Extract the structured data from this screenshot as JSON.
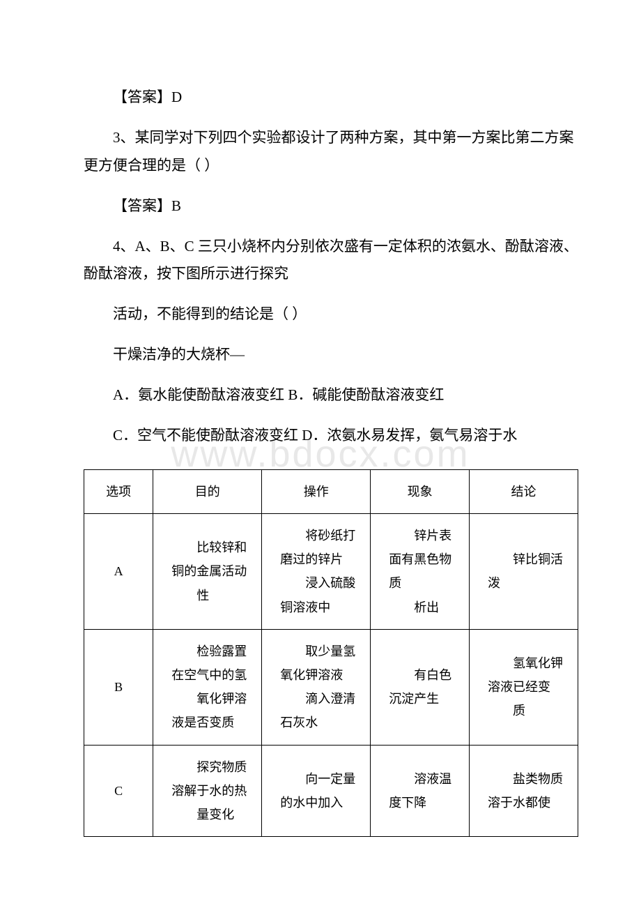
{
  "answers": {
    "ans_d": "【答案】D",
    "ans_b": "【答案】B"
  },
  "questions": {
    "q3": "3、某同学对下列四个实验都设计了两种方案，其中第一方案比第二方案更方便合理的是（ ）",
    "q4_line1": "4、A、B、C 三只小烧杯内分别依次盛有一定体积的浓氨水、酚酞溶液、酚酞溶液，按下图所示进行探究",
    "q4_line2": "活动，不能得到的结论是（ ）",
    "q4_line3": "干燥洁净的大烧杯—",
    "q4_optA": "A．氨水能使酚酞溶液变红 B．碱能使酚酞溶液变红",
    "q4_optC": "C．空气不能使酚酞溶液变红 D．浓氨水易发挥，氨气易溶于水"
  },
  "table": {
    "headers": {
      "option": "选项",
      "purpose": "目的",
      "operation": "操作",
      "phenomenon": "现象",
      "conclusion": "结论"
    },
    "rows": [
      {
        "option": "A",
        "purpose_l1": "比较锌和铜的金属活动",
        "purpose_l2": "性",
        "operation_l1": "将砂纸打磨过的锌片",
        "operation_l2": "浸入硫酸铜溶液中",
        "phenomenon_l1": "锌片表面有黑色物质",
        "phenomenon_l2": "析出",
        "conclusion_l1": "锌比铜活泼",
        "conclusion_l2": ""
      },
      {
        "option": "B",
        "purpose_l1": "检验露置在空气中的氢",
        "purpose_l2": "氧化钾溶液是否变质",
        "operation_l1": "取少量氢氧化钾溶液",
        "operation_l2": "滴入澄清石灰水",
        "phenomenon_l1": "有白色沉淀产生",
        "phenomenon_l2": "",
        "conclusion_l1": "氢氧化钾溶液已经变",
        "conclusion_l2": "质"
      },
      {
        "option": "C",
        "purpose_l1": "探究物质溶解于水的热",
        "purpose_l2": "量变化",
        "operation_l1": "向一定量的水中加入",
        "operation_l2": "",
        "phenomenon_l1": "溶液温度下降",
        "phenomenon_l2": "",
        "conclusion_l1": "盐类物质溶于水都使",
        "conclusion_l2": ""
      }
    ]
  },
  "watermark": "www.bdocx.com",
  "colors": {
    "text": "#000000",
    "background": "#ffffff",
    "watermark": "#e8e8e8",
    "border": "#000000"
  },
  "typography": {
    "body_fontsize": 21,
    "table_fontsize": 18,
    "watermark_fontsize": 54,
    "line_height": 1.9
  }
}
